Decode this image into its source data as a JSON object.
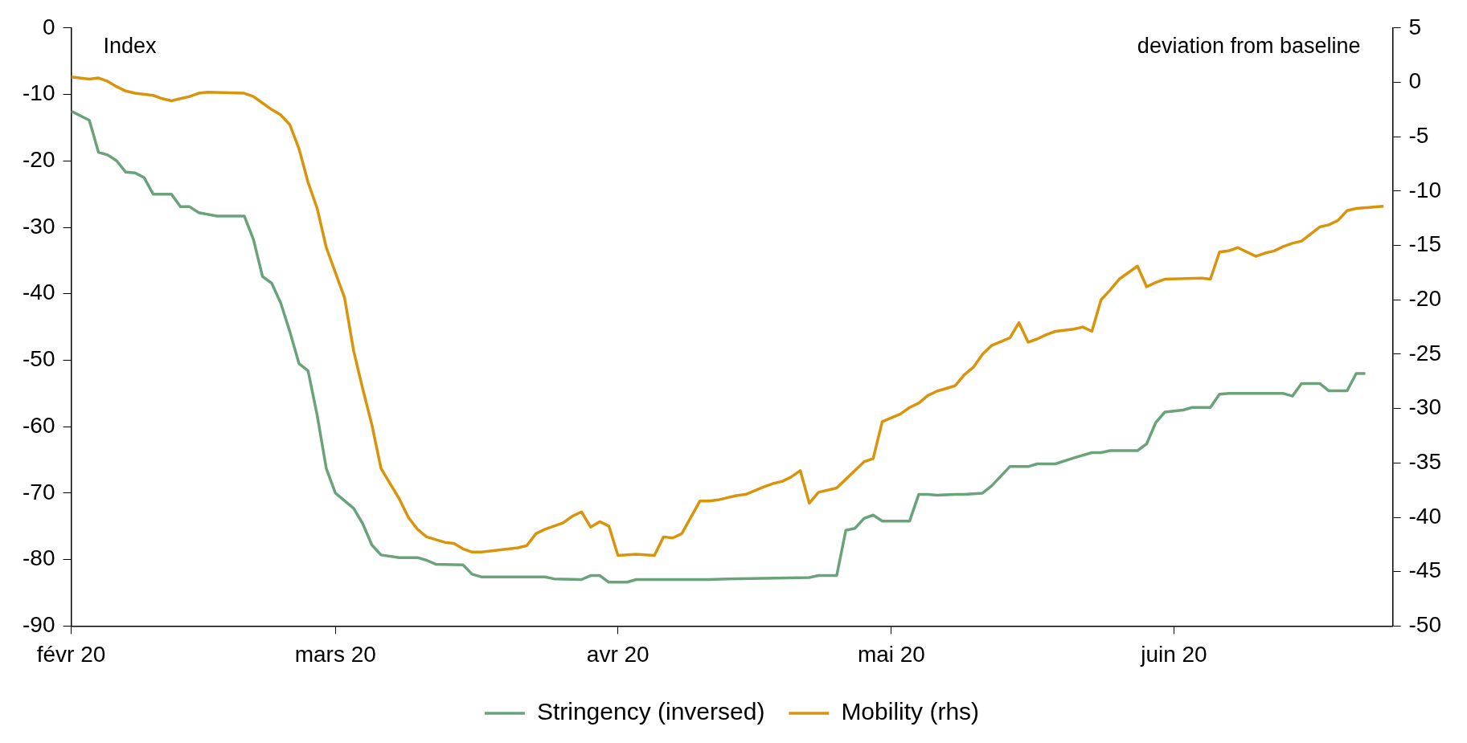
{
  "chart_data": {
    "type": "line",
    "ylabel": "Index",
    "y2label": "deviation from baseline",
    "legend": "bottom",
    "grid": false,
    "marker": "none",
    "xlim": [
      "2020-02-01",
      "2020-06-25"
    ],
    "xticks": [
      {
        "value": "2020-02-01",
        "label": "févr 20"
      },
      {
        "value": "2020-03-01",
        "label": "mars 20"
      },
      {
        "value": "2020-04-01",
        "label": "avr 20"
      },
      {
        "value": "2020-05-01",
        "label": "mai 20"
      },
      {
        "value": "2020-06-01",
        "label": "juin 20"
      }
    ],
    "ylim": [
      -90,
      0
    ],
    "yticks": [
      -90,
      -80,
      -70,
      -60,
      -50,
      -40,
      -30,
      -20,
      -10,
      0
    ],
    "y2lim": [
      -50,
      5
    ],
    "y2ticks": [
      -50,
      -45,
      -40,
      -35,
      -30,
      -25,
      -20,
      -15,
      -10,
      -5,
      0,
      5
    ],
    "series": [
      {
        "name": "Stringency (inversed)",
        "color": "#6aa37a",
        "x": [
          "2020-02-01",
          "2020-02-03",
          "2020-02-04",
          "2020-02-05",
          "2020-02-06",
          "2020-02-07",
          "2020-02-08",
          "2020-02-09",
          "2020-02-10",
          "2020-02-12",
          "2020-02-13",
          "2020-02-14",
          "2020-02-15",
          "2020-02-17",
          "2020-02-20",
          "2020-02-21",
          "2020-02-22",
          "2020-02-23",
          "2020-02-24",
          "2020-02-25",
          "2020-02-26",
          "2020-02-27",
          "2020-02-28",
          "2020-02-29",
          "2020-03-01",
          "2020-03-03",
          "2020-03-04",
          "2020-03-05",
          "2020-03-06",
          "2020-03-08",
          "2020-03-10",
          "2020-03-11",
          "2020-03-12",
          "2020-03-15",
          "2020-03-16",
          "2020-03-17",
          "2020-03-24",
          "2020-03-25",
          "2020-03-28",
          "2020-03-29",
          "2020-03-30",
          "2020-03-31",
          "2020-04-02",
          "2020-04-03",
          "2020-04-11",
          "2020-04-13",
          "2020-04-22",
          "2020-04-23",
          "2020-04-25",
          "2020-04-26",
          "2020-04-27",
          "2020-04-28",
          "2020-04-29",
          "2020-04-30",
          "2020-05-03",
          "2020-05-04",
          "2020-05-05",
          "2020-05-06",
          "2020-05-08",
          "2020-05-09",
          "2020-05-11",
          "2020-05-12",
          "2020-05-14",
          "2020-05-16",
          "2020-05-17",
          "2020-05-19",
          "2020-05-21",
          "2020-05-23",
          "2020-05-24",
          "2020-05-25",
          "2020-05-28",
          "2020-05-29",
          "2020-05-30",
          "2020-05-31",
          "2020-06-02",
          "2020-06-03",
          "2020-06-05",
          "2020-06-06",
          "2020-06-07",
          "2020-06-13",
          "2020-06-14",
          "2020-06-15",
          "2020-06-17",
          "2020-06-18",
          "2020-06-20",
          "2020-06-21",
          "2020-06-22"
        ],
        "values": [
          -12.5,
          -13.9,
          -18.7,
          -19.1,
          -20,
          -21.7,
          -21.8,
          -22.5,
          -25,
          -25,
          -26.9,
          -26.9,
          -27.8,
          -28.3,
          -28.3,
          -31.8,
          -37.4,
          -38.4,
          -41.4,
          -45.7,
          -50.5,
          -51.6,
          -58.3,
          -66.3,
          -70,
          -72.3,
          -74.6,
          -77.8,
          -79.3,
          -79.7,
          -79.7,
          -80.1,
          -80.7,
          -80.8,
          -82.2,
          -82.6,
          -82.6,
          -82.9,
          -83,
          -82.4,
          -82.4,
          -83.4,
          -83.4,
          -83,
          -83,
          -82.9,
          -82.7,
          -82.4,
          -82.4,
          -75.6,
          -75.3,
          -73.8,
          -73.3,
          -74.2,
          -74.2,
          -70.2,
          -70.2,
          -70.3,
          -70.2,
          -70.2,
          -70,
          -68.9,
          -66,
          -66,
          -65.6,
          -65.6,
          -64.7,
          -63.9,
          -63.9,
          -63.6,
          -63.6,
          -62.6,
          -59.4,
          -57.8,
          -57.5,
          -57.1,
          -57.1,
          -55.1,
          -55,
          -55,
          -55.4,
          -53.5,
          -53.5,
          -54.6,
          -54.6,
          -52,
          -52
        ]
      },
      {
        "name": "Mobility (rhs)",
        "color": "#d9940c",
        "axis": "y2",
        "x": [
          "2020-02-01",
          "2020-02-03",
          "2020-02-04",
          "2020-02-05",
          "2020-02-06",
          "2020-02-07",
          "2020-02-08",
          "2020-02-10",
          "2020-02-11",
          "2020-02-12",
          "2020-02-13",
          "2020-02-14",
          "2020-02-15",
          "2020-02-16",
          "2020-02-20",
          "2020-02-21",
          "2020-02-22",
          "2020-02-23",
          "2020-02-24",
          "2020-02-25",
          "2020-02-26",
          "2020-02-27",
          "2020-02-28",
          "2020-02-29",
          "2020-03-02",
          "2020-03-03",
          "2020-03-04",
          "2020-03-05",
          "2020-03-06",
          "2020-03-08",
          "2020-03-09",
          "2020-03-10",
          "2020-03-11",
          "2020-03-13",
          "2020-03-14",
          "2020-03-15",
          "2020-03-16",
          "2020-03-17",
          "2020-03-18",
          "2020-03-21",
          "2020-03-22",
          "2020-03-23",
          "2020-03-24",
          "2020-03-26",
          "2020-03-27",
          "2020-03-28",
          "2020-03-29",
          "2020-03-30",
          "2020-03-31",
          "2020-04-01",
          "2020-04-03",
          "2020-04-05",
          "2020-04-06",
          "2020-04-07",
          "2020-04-08",
          "2020-04-10",
          "2020-04-11",
          "2020-04-12",
          "2020-04-13",
          "2020-04-14",
          "2020-04-15",
          "2020-04-17",
          "2020-04-18",
          "2020-04-19",
          "2020-04-20",
          "2020-04-21",
          "2020-04-22",
          "2020-04-23",
          "2020-04-25",
          "2020-04-26",
          "2020-04-27",
          "2020-04-28",
          "2020-04-29",
          "2020-04-30",
          "2020-05-02",
          "2020-05-03",
          "2020-05-04",
          "2020-05-05",
          "2020-05-06",
          "2020-05-08",
          "2020-05-09",
          "2020-05-10",
          "2020-05-11",
          "2020-05-12",
          "2020-05-14",
          "2020-05-15",
          "2020-05-16",
          "2020-05-17",
          "2020-05-18",
          "2020-05-19",
          "2020-05-21",
          "2020-05-22",
          "2020-05-23",
          "2020-05-24",
          "2020-05-25",
          "2020-05-26",
          "2020-05-28",
          "2020-05-29",
          "2020-05-30",
          "2020-05-31",
          "2020-06-04",
          "2020-06-05",
          "2020-06-06",
          "2020-06-07",
          "2020-06-08",
          "2020-06-10",
          "2020-06-11",
          "2020-06-12",
          "2020-06-13",
          "2020-06-14",
          "2020-06-15",
          "2020-06-17",
          "2020-06-18",
          "2020-06-19",
          "2020-06-20",
          "2020-06-21",
          "2020-06-24"
        ],
        "values": [
          0.5,
          0.3,
          0.4,
          0.1,
          -0.4,
          -0.8,
          -1,
          -1.2,
          -1.5,
          -1.7,
          -1.5,
          -1.3,
          -1,
          -0.9,
          -1,
          -1.3,
          -1.9,
          -2.5,
          -3,
          -3.9,
          -6.1,
          -9.2,
          -11.6,
          -15.2,
          -19.8,
          -24.7,
          -28.2,
          -31.5,
          -35.5,
          -38.3,
          -40,
          -41.1,
          -41.8,
          -42.3,
          -42.4,
          -42.9,
          -43.2,
          -43.2,
          -43.1,
          -42.8,
          -42.6,
          -41.5,
          -41.1,
          -40.5,
          -39.9,
          -39.5,
          -40.9,
          -40.4,
          -40.8,
          -43.5,
          -43.4,
          -43.5,
          -41.8,
          -41.9,
          -41.5,
          -38.5,
          -38.5,
          -38.4,
          -38.2,
          -38,
          -37.9,
          -37.2,
          -36.9,
          -36.7,
          -36.3,
          -35.7,
          -38.7,
          -37.7,
          -37.3,
          -36.5,
          -35.7,
          -34.9,
          -34.6,
          -31.2,
          -30.5,
          -29.9,
          -29.5,
          -28.8,
          -28.4,
          -27.9,
          -26.9,
          -26.2,
          -25,
          -24.2,
          -23.5,
          -22.1,
          -23.9,
          -23.6,
          -23.2,
          -22.9,
          -22.7,
          -22.5,
          -22.9,
          -20,
          -19.1,
          -18.1,
          -16.9,
          -18.8,
          -18.4,
          -18.1,
          -18,
          -18.1,
          -15.6,
          -15.5,
          -15.2,
          -16,
          -15.7,
          -15.5,
          -15.1,
          -14.8,
          -14.6,
          -13.3,
          -13.1,
          -12.7,
          -11.8,
          -11.6,
          -11.4
        ]
      }
    ]
  }
}
